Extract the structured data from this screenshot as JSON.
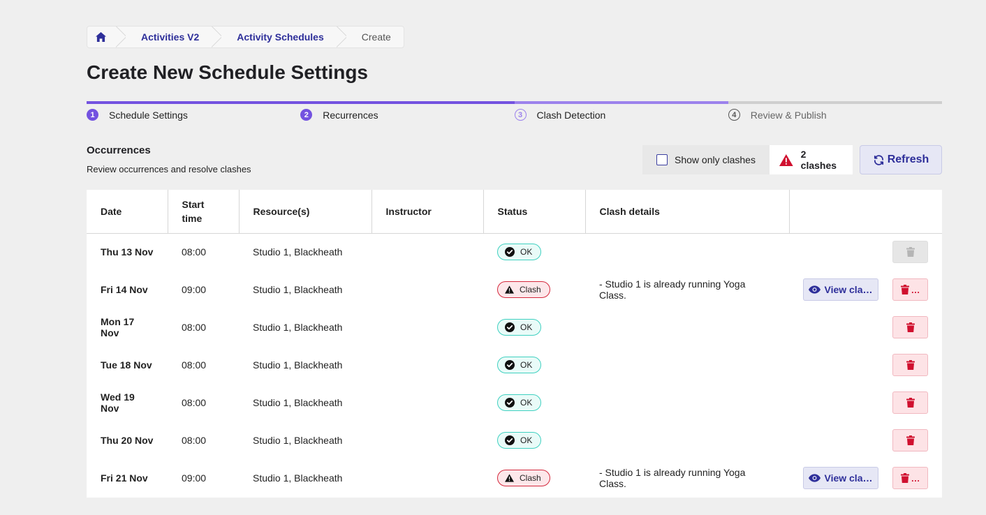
{
  "breadcrumb": {
    "home_icon": "home-icon",
    "items": [
      "Activities V2",
      "Activity Schedules"
    ],
    "current": "Create"
  },
  "page_title": "Create New Schedule Settings",
  "stepper": [
    {
      "num": "1",
      "label": "Schedule Settings",
      "state": "done"
    },
    {
      "num": "2",
      "label": "Recurrences",
      "state": "done"
    },
    {
      "num": "3",
      "label": "Clash Detection",
      "state": "active"
    },
    {
      "num": "4",
      "label": "Review & Publish",
      "state": "todo"
    }
  ],
  "section": {
    "title": "Occurrences",
    "subtitle": "Review occurrences and resolve clashes"
  },
  "toolbar": {
    "show_clashes_label": "Show only clashes",
    "show_clashes_checked": false,
    "clash_count_label": "2 clashes",
    "refresh_label": "Refresh"
  },
  "table": {
    "headers": {
      "date": "Date",
      "start_time": "Start time",
      "resources": "Resource(s)",
      "instructor": "Instructor",
      "status": "Status",
      "clash_details": "Clash details",
      "actions": ""
    },
    "view_label": "View cla…",
    "delete_more": "…",
    "rows": [
      {
        "date": "Thu 13 Nov",
        "time": "08:00",
        "resource": "Studio 1, Blackheath",
        "instructor": "",
        "status": "OK",
        "clash": "",
        "has_view": false,
        "delete_disabled": true
      },
      {
        "date": "Fri 14 Nov",
        "time": "09:00",
        "resource": "Studio 1, Blackheath",
        "instructor": "",
        "status": "Clash",
        "clash": "- Studio 1 is already running Yoga Class.",
        "has_view": true,
        "delete_disabled": false
      },
      {
        "date": "Mon 17 Nov",
        "time": "08:00",
        "resource": "Studio 1, Blackheath",
        "instructor": "",
        "status": "OK",
        "clash": "",
        "has_view": false,
        "delete_disabled": false
      },
      {
        "date": "Tue 18 Nov",
        "time": "08:00",
        "resource": "Studio 1, Blackheath",
        "instructor": "",
        "status": "OK",
        "clash": "",
        "has_view": false,
        "delete_disabled": false
      },
      {
        "date": "Wed 19 Nov",
        "time": "08:00",
        "resource": "Studio 1, Blackheath",
        "instructor": "",
        "status": "OK",
        "clash": "",
        "has_view": false,
        "delete_disabled": false
      },
      {
        "date": "Thu 20 Nov",
        "time": "08:00",
        "resource": "Studio 1, Blackheath",
        "instructor": "",
        "status": "OK",
        "clash": "",
        "has_view": false,
        "delete_disabled": false
      },
      {
        "date": "Fri 21 Nov",
        "time": "09:00",
        "resource": "Studio 1, Blackheath",
        "instructor": "",
        "status": "Clash",
        "clash": "- Studio 1 is already running Yoga Class.",
        "has_view": true,
        "delete_disabled": false
      }
    ]
  },
  "colors": {
    "accent": "#7352e0",
    "link": "#2e2f9a",
    "danger": "#d0102f",
    "ok": "#3fd0c0"
  }
}
